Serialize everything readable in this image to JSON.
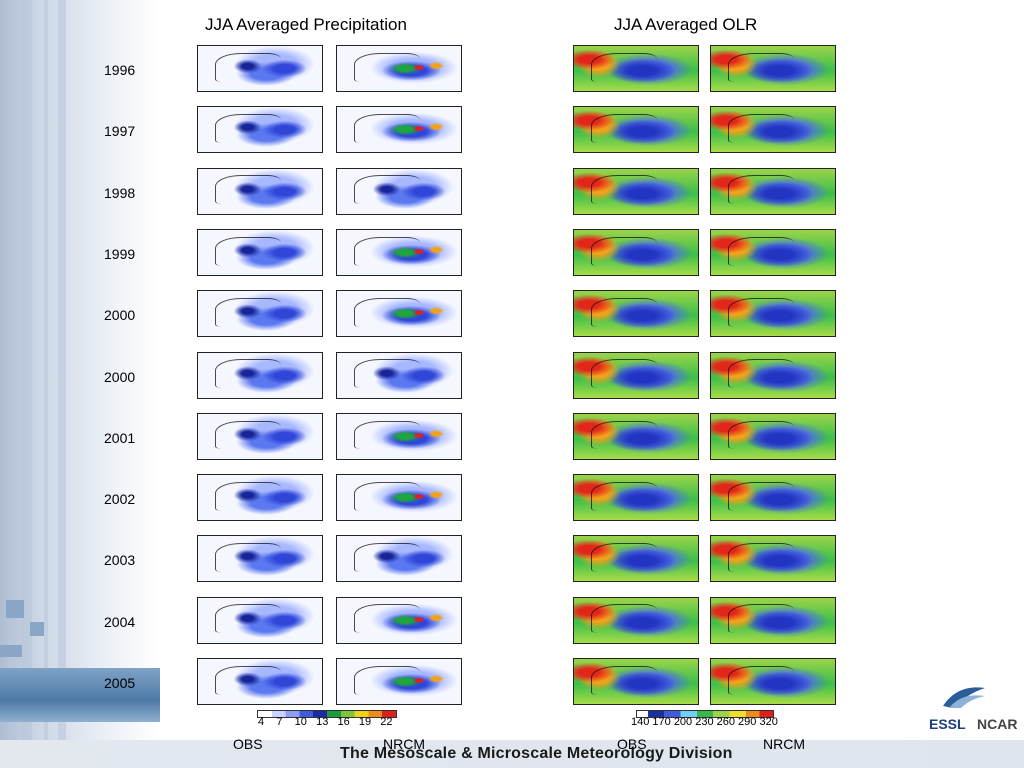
{
  "titles": {
    "precipitation": "JJA Averaged Precipitation",
    "olr": "JJA Averaged OLR"
  },
  "years": [
    "1996",
    "1997",
    "1998",
    "1999",
    "2000",
    "2000",
    "2001",
    "2002",
    "2003",
    "2004",
    "2005"
  ],
  "precip_colorbar_ticks": "4    7    10   13   16   19   22",
  "olr_colorbar_ticks": "140 170 200 230 260 290 320",
  "column_labels": {
    "precip_obs": "OBS",
    "precip_nrcm": "NRCM",
    "olr_obs": "OBS",
    "olr_nrcm": "NRCM"
  },
  "footer": "The Mesoscale & Microscale Meteorology Division",
  "logos": {
    "essl": "ESSL",
    "ncar": "NCAR"
  }
}
